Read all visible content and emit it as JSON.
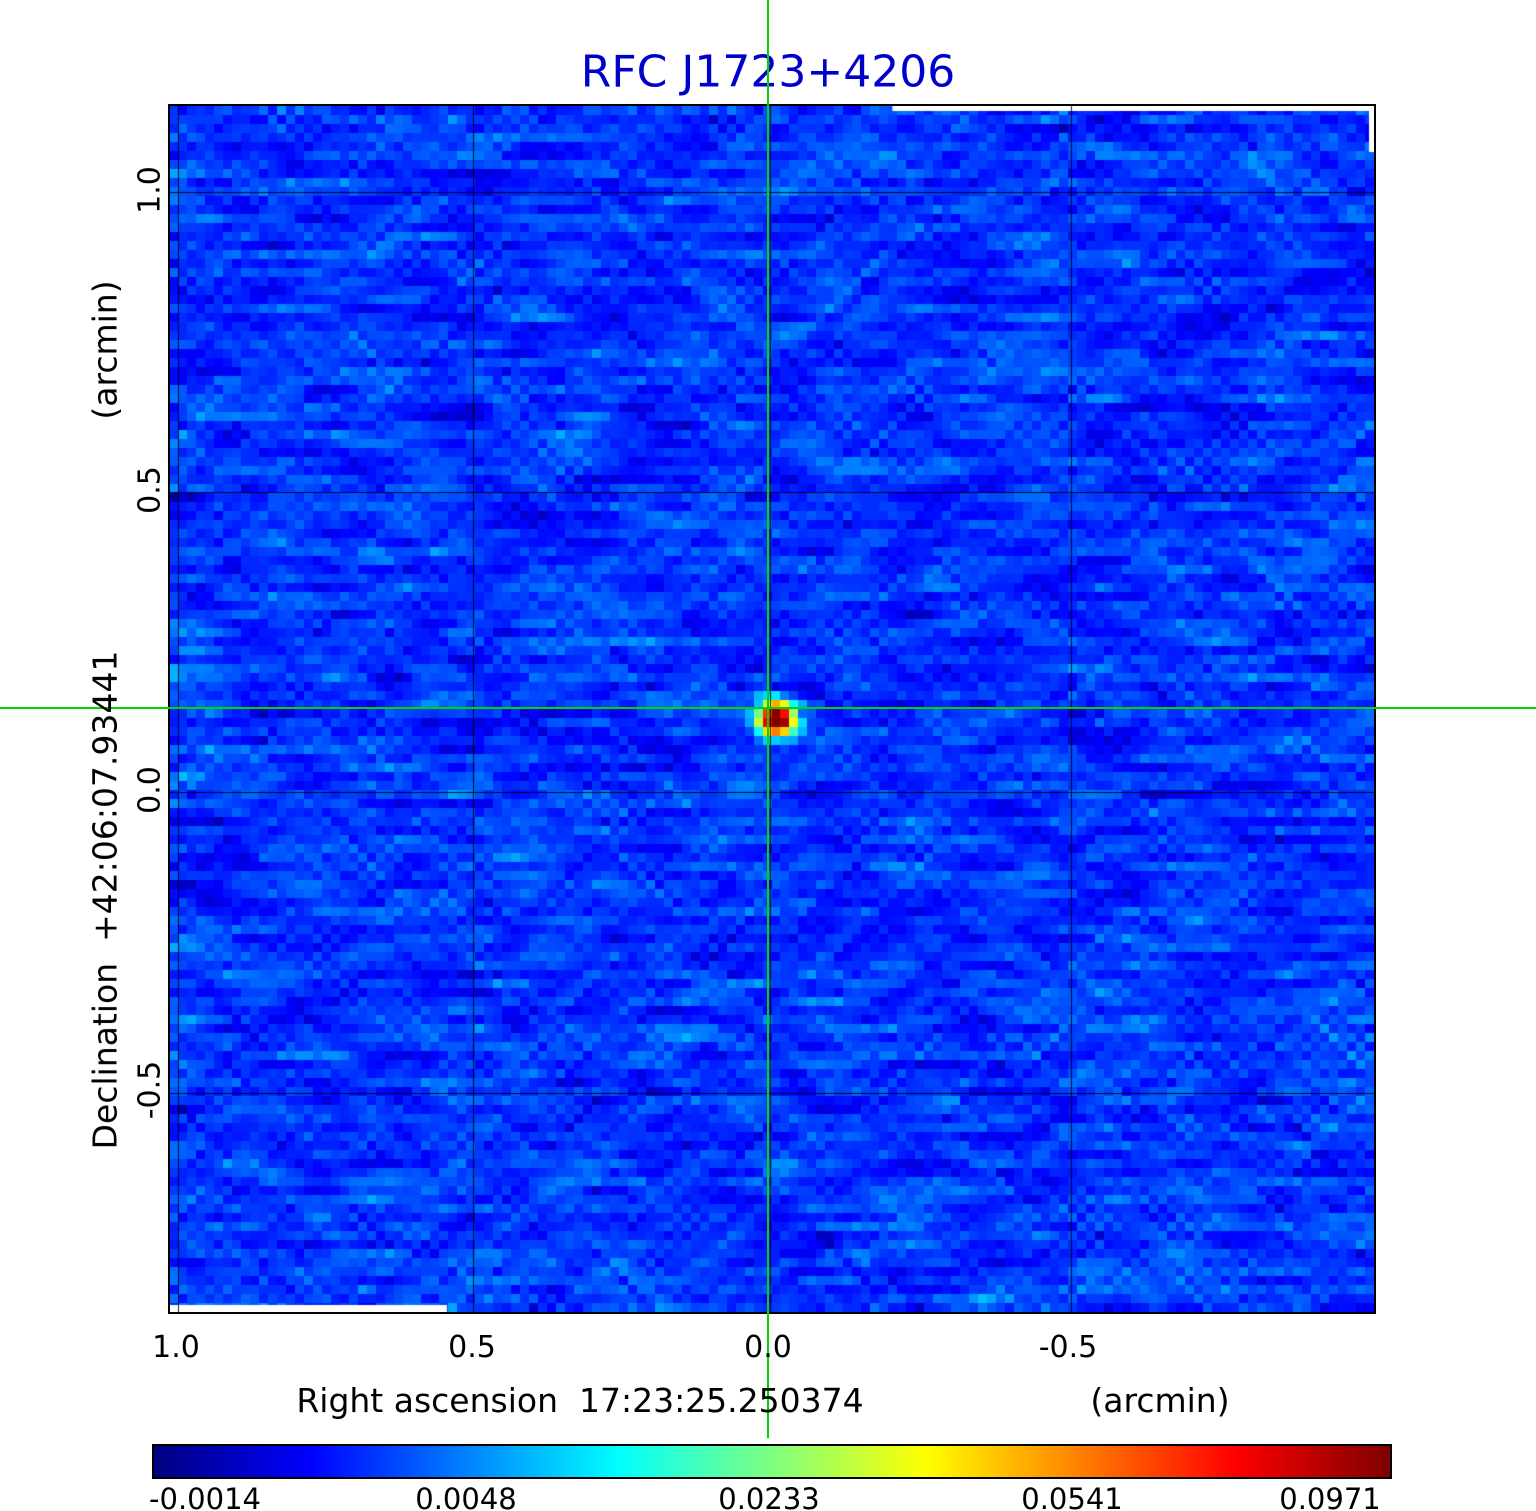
{
  "figure": {
    "title": "RFC J1723+4206",
    "title_color": "#0000cd",
    "crosshair_color": "#00d500"
  },
  "chart_data": {
    "type": "heatmap",
    "title": "RFC J1723+4206",
    "x_axis": {
      "label": "Right ascension  17:23:25.250374",
      "unit": "(arcmin)",
      "ticks": [
        "1.0",
        "0.5",
        "0.0",
        "-0.5"
      ],
      "range_arcmin": [
        1.01,
        -1.01
      ]
    },
    "y_axis": {
      "label": "Declination  +42:06:07.93441",
      "unit": "(arcmin)",
      "ticks": [
        "1.0",
        "0.5",
        "0.0",
        "-0.5"
      ],
      "range_arcmin": [
        1.14,
        -0.86
      ]
    },
    "grid": true,
    "legend_position": "bottom-colorbar",
    "source": {
      "name": "RFC J1723+4206",
      "x_arcmin": 0.0,
      "y_arcmin": 0.13,
      "peak": 0.0971
    },
    "colorbar": {
      "colormap": "jet",
      "tick_labels": [
        "-0.0014",
        "0.0048",
        "0.0233",
        "0.0541",
        "0.0971"
      ],
      "min": -0.0014,
      "max": 0.0971
    }
  }
}
